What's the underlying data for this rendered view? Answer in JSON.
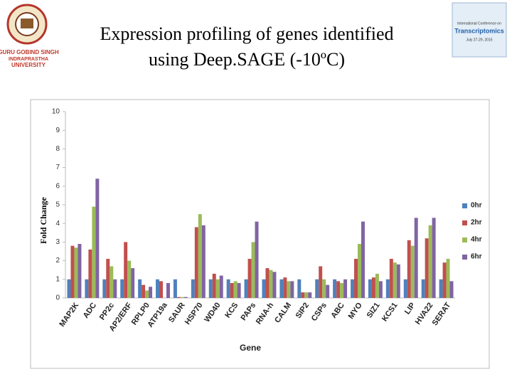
{
  "chart_data": {
    "type": "bar",
    "title": [
      "Expression profiling of genes identified",
      "using Deep.SAGE (-10ºC)"
    ],
    "university": [
      "GURU GOBIND SINGH",
      "INDRAPRASTHA",
      "UNIVERSITY"
    ],
    "conference": [
      "International Conference on",
      "Transcriptomics",
      "July 27-29, 2015"
    ],
    "y_label": "Fold Change",
    "x_label": "Gene",
    "categories": [
      "MAP2K",
      "ADC",
      "PP2c",
      "AP2/ERF",
      "RPLP0",
      "ATP19a",
      "SAUR",
      "HSP70",
      "WD40",
      "KCS",
      "PAPs",
      "RNA-h",
      "CALM",
      "SIP2",
      "CSPs",
      "ABC",
      "MYO",
      "SIZ1",
      "KCS1",
      "LIP",
      "HVA22",
      "SERAT"
    ],
    "series": [
      {
        "name": "0hr",
        "color": "#4f81bd",
        "values": [
          1,
          1,
          1,
          1,
          1,
          1,
          1,
          1,
          1,
          1,
          1,
          1,
          1,
          1,
          1,
          1,
          1,
          1,
          1,
          1,
          1,
          1
        ]
      },
      {
        "name": "2hr",
        "color": "#c0504d",
        "values": [
          2.8,
          2.6,
          2.1,
          3.0,
          0.7,
          0.9,
          0.05,
          3.8,
          1.3,
          0.8,
          2.1,
          1.6,
          1.1,
          0.3,
          1.7,
          0.9,
          2.1,
          1.1,
          2.1,
          3.1,
          3.2,
          1.9
        ]
      },
      {
        "name": "4hr",
        "color": "#9bbb59",
        "values": [
          2.7,
          4.9,
          1.7,
          2.0,
          0.4,
          0,
          0.05,
          4.5,
          1.0,
          0.9,
          3.0,
          1.5,
          0.9,
          0.3,
          1.0,
          0.8,
          2.9,
          1.3,
          1.9,
          2.8,
          3.9,
          2.1
        ]
      },
      {
        "name": "6hr",
        "color": "#8064a2",
        "values": [
          2.9,
          6.4,
          1.0,
          1.6,
          0.6,
          0.8,
          0.05,
          3.9,
          1.2,
          0.8,
          4.1,
          1.4,
          0.9,
          0.3,
          0.7,
          1.0,
          4.1,
          0.9,
          1.8,
          4.3,
          4.3,
          0.9
        ]
      }
    ],
    "ylim": [
      0,
      10
    ],
    "yticks": [
      0,
      1,
      2,
      3,
      4,
      5,
      6,
      7,
      8,
      9,
      10
    ],
    "grid": false,
    "legend": "right"
  }
}
